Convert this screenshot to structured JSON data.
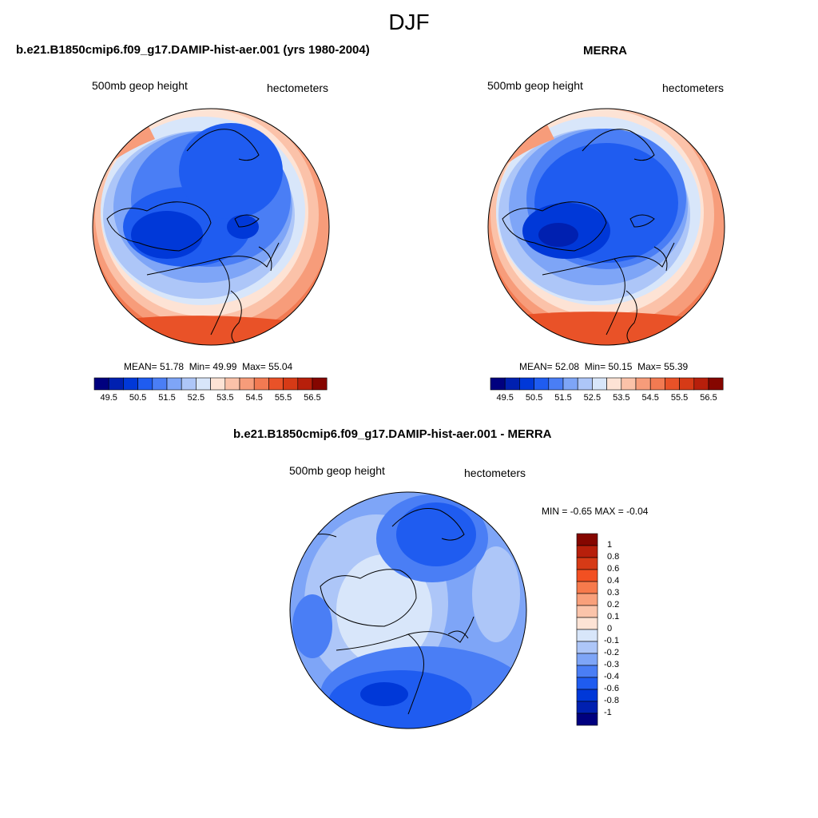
{
  "figure": {
    "title": "DJF"
  },
  "panels": {
    "left": {
      "title": "b.e21.B1850cmip6.f09_g17.DAMIP-hist-aer.001 (yrs 1980-2004)",
      "variable": "500mb geop height",
      "units": "hectometers",
      "stats": {
        "mean_label": "MEAN=",
        "mean": "51.78",
        "min_label": "Min=",
        "min": "49.99",
        "max_label": "Max=",
        "max": "55.04"
      }
    },
    "right": {
      "title": "MERRA",
      "variable": "500mb geop height",
      "units": "hectometers",
      "stats": {
        "mean_label": "MEAN=",
        "mean": "52.08",
        "min_label": "Min=",
        "min": "50.15",
        "max_label": "Max=",
        "max": "55.39"
      }
    },
    "diff": {
      "title": "b.e21.B1850cmip6.f09_g17.DAMIP-hist-aer.001 - MERRA",
      "variable": "500mb geop height",
      "units": "hectometers",
      "stats": {
        "min_label": "MIN =",
        "min": "-0.65",
        "max_label": "MAX =",
        "max": "-0.04"
      }
    }
  },
  "colorbars": {
    "field": {
      "orientation": "horizontal",
      "colors": [
        "#00007f",
        "#0020b0",
        "#0038d8",
        "#1f5cf0",
        "#4a7ef5",
        "#7ea5f7",
        "#adc6f8",
        "#d8e6fa",
        "#fde3d5",
        "#fbc2a9",
        "#f79c7a",
        "#f27a52",
        "#e95228",
        "#d63a16",
        "#b71f0b",
        "#850600"
      ],
      "labels": [
        "49.5",
        "50.5",
        "51.5",
        "52.5",
        "53.5",
        "54.5",
        "55.5",
        "56.5"
      ]
    },
    "diff": {
      "orientation": "vertical",
      "colors": [
        "#850600",
        "#b71f0b",
        "#d63a16",
        "#f25022",
        "#f77a4c",
        "#f9a07b",
        "#fbc4aa",
        "#fde3d5",
        "#d8e6fa",
        "#adc6f8",
        "#7ea5f7",
        "#4a7ef5",
        "#1f5cf0",
        "#0038d8",
        "#0020b0",
        "#00007f"
      ],
      "labels": [
        "1",
        "0.8",
        "0.6",
        "0.4",
        "0.3",
        "0.2",
        "0.1",
        "0",
        "-0.1",
        "-0.2",
        "-0.3",
        "-0.4",
        "-0.6",
        "-0.8",
        "-1"
      ]
    }
  }
}
